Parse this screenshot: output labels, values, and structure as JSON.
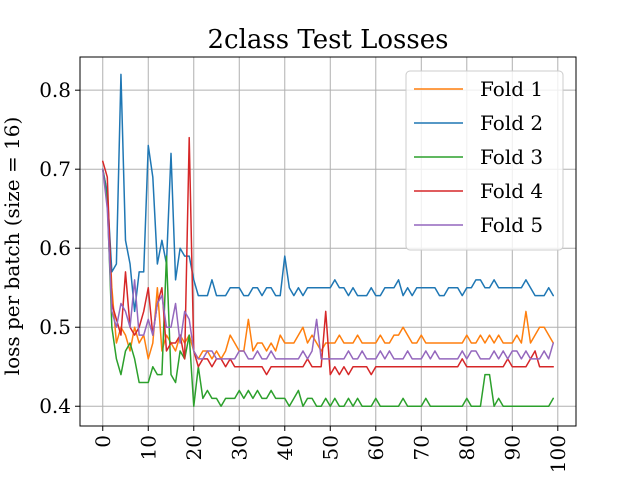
{
  "chart_data": {
    "type": "line",
    "title": "2class Test Losses",
    "xlabel": "",
    "ylabel": "loss per batch (size = 16)",
    "xlim": [
      -5,
      104
    ],
    "ylim": [
      0.375,
      0.842
    ],
    "grid": true,
    "legend_position": "top-right",
    "x_ticks": [
      0,
      10,
      20,
      30,
      40,
      50,
      60,
      70,
      80,
      90,
      100
    ],
    "x_tick_labels": [
      "0",
      "10",
      "20",
      "30",
      "40",
      "50",
      "60",
      "70",
      "80",
      "90",
      "100"
    ],
    "y_ticks": [
      0.4,
      0.5,
      0.6,
      0.7,
      0.8
    ],
    "y_tick_labels": [
      "0.4",
      "0.5",
      "0.6",
      "0.7",
      "0.8"
    ],
    "x": [
      0,
      1,
      2,
      3,
      4,
      5,
      6,
      7,
      8,
      9,
      10,
      11,
      12,
      13,
      14,
      15,
      16,
      17,
      18,
      19,
      20,
      21,
      22,
      23,
      24,
      25,
      26,
      27,
      28,
      29,
      30,
      31,
      32,
      33,
      34,
      35,
      36,
      37,
      38,
      39,
      40,
      41,
      42,
      43,
      44,
      45,
      46,
      47,
      48,
      49,
      50,
      51,
      52,
      53,
      54,
      55,
      56,
      57,
      58,
      59,
      60,
      61,
      62,
      63,
      64,
      65,
      66,
      67,
      68,
      69,
      70,
      71,
      72,
      73,
      74,
      75,
      76,
      77,
      78,
      79,
      80,
      81,
      82,
      83,
      84,
      85,
      86,
      87,
      88,
      89,
      90,
      91,
      92,
      93,
      94,
      95,
      96,
      97,
      98,
      99
    ],
    "series": [
      {
        "name": "Fold 1",
        "color": "#ff7f0e",
        "values": [
          0.7,
          0.67,
          0.55,
          0.48,
          0.5,
          0.49,
          0.47,
          0.5,
          0.48,
          0.49,
          0.46,
          0.48,
          0.55,
          0.47,
          0.49,
          0.48,
          0.47,
          0.49,
          0.48,
          0.49,
          0.47,
          0.46,
          0.47,
          0.47,
          0.46,
          0.47,
          0.46,
          0.47,
          0.49,
          0.48,
          0.47,
          0.47,
          0.51,
          0.47,
          0.48,
          0.48,
          0.47,
          0.48,
          0.47,
          0.49,
          0.48,
          0.48,
          0.48,
          0.49,
          0.5,
          0.48,
          0.49,
          0.48,
          0.47,
          0.48,
          0.48,
          0.48,
          0.49,
          0.48,
          0.48,
          0.48,
          0.49,
          0.48,
          0.48,
          0.48,
          0.48,
          0.49,
          0.48,
          0.48,
          0.49,
          0.49,
          0.5,
          0.49,
          0.48,
          0.48,
          0.49,
          0.48,
          0.48,
          0.48,
          0.48,
          0.48,
          0.48,
          0.48,
          0.48,
          0.48,
          0.49,
          0.48,
          0.48,
          0.49,
          0.48,
          0.49,
          0.48,
          0.49,
          0.48,
          0.48,
          0.48,
          0.49,
          0.48,
          0.52,
          0.48,
          0.49,
          0.5,
          0.5,
          0.49,
          0.48
        ]
      },
      {
        "name": "Fold 2",
        "color": "#1f77b4",
        "values": [
          0.7,
          0.67,
          0.57,
          0.58,
          0.82,
          0.61,
          0.58,
          0.52,
          0.57,
          0.57,
          0.73,
          0.69,
          0.58,
          0.61,
          0.58,
          0.72,
          0.56,
          0.6,
          0.59,
          0.59,
          0.56,
          0.54,
          0.54,
          0.54,
          0.56,
          0.54,
          0.54,
          0.54,
          0.55,
          0.55,
          0.55,
          0.54,
          0.54,
          0.55,
          0.55,
          0.54,
          0.55,
          0.55,
          0.54,
          0.54,
          0.59,
          0.55,
          0.54,
          0.55,
          0.54,
          0.55,
          0.55,
          0.55,
          0.55,
          0.55,
          0.55,
          0.56,
          0.55,
          0.55,
          0.54,
          0.55,
          0.54,
          0.54,
          0.54,
          0.55,
          0.54,
          0.54,
          0.55,
          0.55,
          0.55,
          0.56,
          0.54,
          0.55,
          0.54,
          0.55,
          0.55,
          0.55,
          0.55,
          0.55,
          0.54,
          0.54,
          0.55,
          0.55,
          0.55,
          0.54,
          0.55,
          0.55,
          0.56,
          0.56,
          0.55,
          0.55,
          0.56,
          0.55,
          0.55,
          0.55,
          0.55,
          0.55,
          0.55,
          0.56,
          0.55,
          0.54,
          0.54,
          0.54,
          0.55,
          0.54
        ]
      },
      {
        "name": "Fold 3",
        "color": "#2ca02c",
        "values": [
          0.7,
          0.66,
          0.5,
          0.46,
          0.44,
          0.47,
          0.48,
          0.46,
          0.43,
          0.43,
          0.43,
          0.45,
          0.44,
          0.44,
          0.59,
          0.44,
          0.43,
          0.47,
          0.46,
          0.49,
          0.4,
          0.45,
          0.41,
          0.42,
          0.41,
          0.41,
          0.4,
          0.41,
          0.41,
          0.41,
          0.42,
          0.41,
          0.42,
          0.41,
          0.42,
          0.41,
          0.41,
          0.42,
          0.41,
          0.41,
          0.41,
          0.4,
          0.41,
          0.42,
          0.4,
          0.41,
          0.41,
          0.4,
          0.4,
          0.41,
          0.4,
          0.41,
          0.4,
          0.4,
          0.41,
          0.4,
          0.41,
          0.4,
          0.4,
          0.4,
          0.41,
          0.4,
          0.4,
          0.4,
          0.4,
          0.4,
          0.41,
          0.4,
          0.4,
          0.4,
          0.4,
          0.41,
          0.4,
          0.4,
          0.4,
          0.4,
          0.4,
          0.4,
          0.4,
          0.4,
          0.41,
          0.4,
          0.4,
          0.4,
          0.44,
          0.44,
          0.4,
          0.41,
          0.4,
          0.4,
          0.4,
          0.4,
          0.4,
          0.4,
          0.4,
          0.4,
          0.4,
          0.4,
          0.4,
          0.41
        ]
      },
      {
        "name": "Fold 4",
        "color": "#d62728",
        "values": [
          0.71,
          0.69,
          0.53,
          0.51,
          0.49,
          0.57,
          0.5,
          0.49,
          0.5,
          0.52,
          0.55,
          0.49,
          0.53,
          0.55,
          0.47,
          0.48,
          0.48,
          0.49,
          0.46,
          0.74,
          0.47,
          0.45,
          0.46,
          0.46,
          0.45,
          0.46,
          0.46,
          0.45,
          0.46,
          0.45,
          0.45,
          0.45,
          0.45,
          0.45,
          0.45,
          0.45,
          0.44,
          0.45,
          0.45,
          0.45,
          0.45,
          0.45,
          0.45,
          0.45,
          0.45,
          0.46,
          0.45,
          0.45,
          0.45,
          0.52,
          0.44,
          0.45,
          0.44,
          0.45,
          0.44,
          0.45,
          0.45,
          0.45,
          0.45,
          0.44,
          0.45,
          0.45,
          0.45,
          0.45,
          0.45,
          0.45,
          0.45,
          0.45,
          0.45,
          0.45,
          0.45,
          0.45,
          0.45,
          0.45,
          0.45,
          0.45,
          0.45,
          0.45,
          0.45,
          0.46,
          0.45,
          0.45,
          0.45,
          0.45,
          0.45,
          0.45,
          0.45,
          0.45,
          0.45,
          0.46,
          0.45,
          0.45,
          0.45,
          0.45,
          0.46,
          0.47,
          0.45,
          0.45,
          0.45,
          0.45
        ]
      },
      {
        "name": "Fold 5",
        "color": "#9467bd",
        "values": [
          0.7,
          0.65,
          0.52,
          0.5,
          0.53,
          0.52,
          0.5,
          0.56,
          0.49,
          0.49,
          0.51,
          0.49,
          0.53,
          0.54,
          0.5,
          0.5,
          0.53,
          0.48,
          0.52,
          0.51,
          0.47,
          0.46,
          0.46,
          0.47,
          0.47,
          0.46,
          0.46,
          0.46,
          0.46,
          0.46,
          0.47,
          0.47,
          0.46,
          0.46,
          0.47,
          0.46,
          0.46,
          0.47,
          0.46,
          0.46,
          0.46,
          0.46,
          0.46,
          0.46,
          0.47,
          0.46,
          0.47,
          0.51,
          0.46,
          0.46,
          0.46,
          0.46,
          0.46,
          0.46,
          0.47,
          0.46,
          0.46,
          0.47,
          0.46,
          0.46,
          0.46,
          0.47,
          0.46,
          0.47,
          0.46,
          0.46,
          0.46,
          0.47,
          0.46,
          0.46,
          0.46,
          0.47,
          0.46,
          0.47,
          0.46,
          0.46,
          0.46,
          0.46,
          0.46,
          0.47,
          0.46,
          0.47,
          0.47,
          0.46,
          0.46,
          0.46,
          0.47,
          0.46,
          0.47,
          0.46,
          0.47,
          0.47,
          0.46,
          0.47,
          0.46,
          0.46,
          0.46,
          0.47,
          0.46,
          0.48
        ]
      }
    ]
  }
}
